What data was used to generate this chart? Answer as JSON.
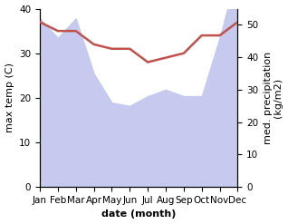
{
  "months": [
    "Jan",
    "Feb",
    "Mar",
    "Apr",
    "May",
    "Jun",
    "Jul",
    "Aug",
    "Sep",
    "Oct",
    "Nov",
    "Dec"
  ],
  "temp": [
    37,
    35,
    35,
    32,
    31,
    31,
    28,
    29,
    30,
    34,
    34,
    37
  ],
  "precip": [
    52,
    46,
    52,
    35,
    26,
    25,
    28,
    30,
    28,
    28,
    46,
    67
  ],
  "temp_color": "#c0514b",
  "precip_fill_color": "#c5caee",
  "temp_ylim": [
    0,
    40
  ],
  "precip_ylim": [
    0,
    55
  ],
  "temp_yticks": [
    0,
    10,
    20,
    30,
    40
  ],
  "precip_yticks": [
    0,
    10,
    20,
    30,
    40,
    50
  ],
  "xlabel": "date (month)",
  "ylabel_left": "max temp (C)",
  "ylabel_right": "med. precipitation\n(kg/m2)",
  "label_fontsize": 8,
  "tick_fontsize": 7.5
}
